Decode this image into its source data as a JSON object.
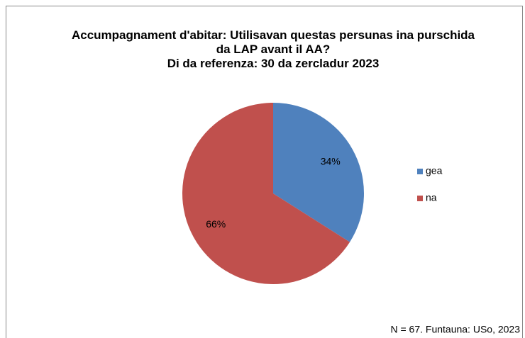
{
  "chart_data": {
    "type": "pie",
    "title": "Accumpagnament d'abitar: Utilisavan questas persunas ina purschida da LAP avant il AA?",
    "subtitle": "Di da referenza: 30 da zercladur 2023",
    "categories": [
      "gea",
      "na"
    ],
    "values": [
      34,
      66
    ],
    "value_labels": [
      "34%",
      "66%"
    ],
    "colors": [
      "#4f81bd",
      "#c0504d"
    ],
    "legend": "right",
    "note": "N = 67. Funtauna: USo, 2023"
  }
}
